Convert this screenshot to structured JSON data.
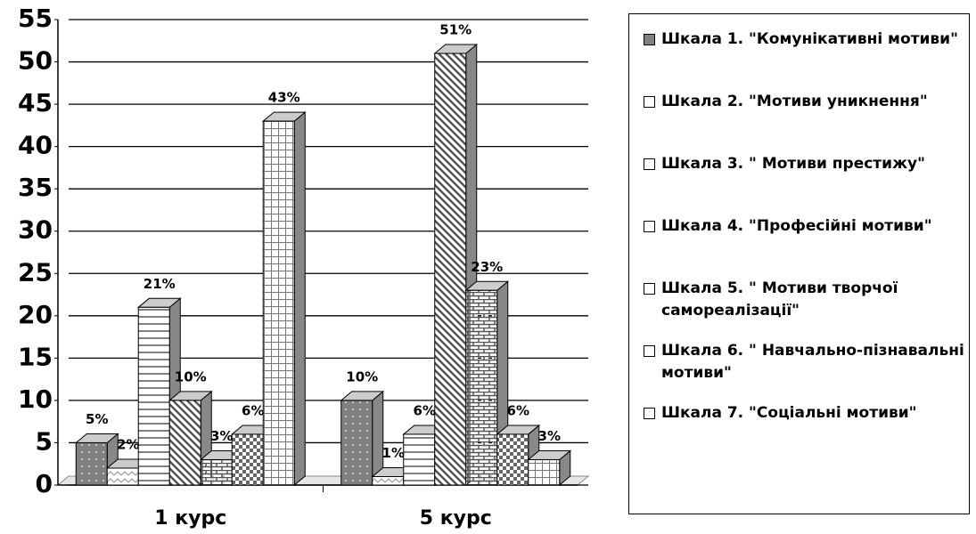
{
  "chart_data": {
    "type": "bar",
    "categories": [
      "1 курс",
      "5 курс"
    ],
    "series": [
      {
        "name": "Шкала 1. \"Комунікативні мотиви\"",
        "color": "#808080",
        "values": [
          5,
          10
        ],
        "value_labels": [
          "5%",
          "10%"
        ]
      },
      {
        "name": "Шкала 2. \"Мотиви уникнення\"",
        "color": "#ffffff",
        "values": [
          2,
          1
        ],
        "value_labels": [
          "2%",
          "1%"
        ]
      },
      {
        "name": "Шкала 3. \" Мотиви престижу\"",
        "color": "#ffffff",
        "values": [
          21,
          6
        ],
        "value_labels": [
          "21%",
          "6%"
        ]
      },
      {
        "name": "Шкала 4.  \"Професійні мотиви\"",
        "color": "#ffffff",
        "values": [
          10,
          51
        ],
        "value_labels": [
          "10%",
          "51%"
        ]
      },
      {
        "name": "Шкала 5. \" Мотиви творчої самореалізації\"",
        "color": "#ffffff",
        "values": [
          3,
          23
        ],
        "value_labels": [
          "3%",
          "23%"
        ]
      },
      {
        "name": "Шкала 6. \" Навчально-пізнавальні мотиви\"",
        "color": "#ffffff",
        "values": [
          6,
          6
        ],
        "value_labels": [
          "6%",
          "6%"
        ]
      },
      {
        "name": "Шкала 7. \"Соціальні мотиви\"",
        "color": "#ffffff",
        "values": [
          43,
          3
        ],
        "value_labels": [
          "43%",
          "3%"
        ]
      }
    ],
    "ylim": [
      0,
      55
    ],
    "yticks": [
      0,
      5,
      10,
      15,
      20,
      25,
      30,
      35,
      40,
      45,
      50,
      55
    ],
    "grid": true
  }
}
